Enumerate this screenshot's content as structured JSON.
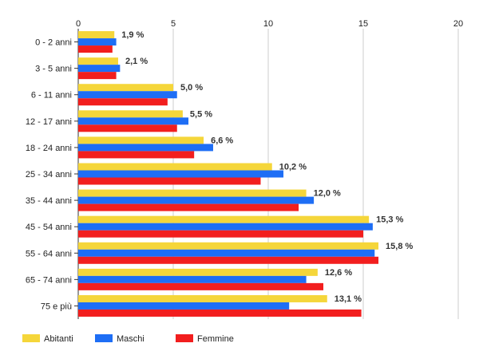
{
  "chart_data": {
    "type": "bar",
    "orientation": "horizontal",
    "categories": [
      "0 - 2 anni",
      "3 - 5 anni",
      "6 - 11 anni",
      "12 - 17 anni",
      "18 - 24 anni",
      "25 - 34 anni",
      "35 - 44 anni",
      "45 - 54 anni",
      "55 - 64 anni",
      "65 - 74 anni",
      "75 e più"
    ],
    "series": [
      {
        "name": "Abitanti",
        "color": "#f5d63a",
        "values": [
          1.9,
          2.1,
          5.0,
          5.5,
          6.6,
          10.2,
          12.0,
          15.3,
          15.8,
          12.6,
          13.1
        ]
      },
      {
        "name": "Maschi",
        "color": "#1e6ef5",
        "values": [
          2.0,
          2.2,
          5.2,
          5.8,
          7.1,
          10.8,
          12.4,
          15.5,
          15.6,
          12.0,
          11.1
        ]
      },
      {
        "name": "Femmine",
        "color": "#f21e1e",
        "values": [
          1.8,
          2.0,
          4.7,
          5.2,
          6.1,
          9.6,
          11.6,
          15.0,
          15.8,
          12.9,
          14.9
        ]
      }
    ],
    "data_labels": [
      "1,9 %",
      "2,1 %",
      "5,0 %",
      "5,5 %",
      "6,6 %",
      "10,2 %",
      "12,0 %",
      "15,3 %",
      "15,8 %",
      "12,6 %",
      "13,1 %"
    ],
    "x_ticks": [
      "0",
      "5",
      "10",
      "15",
      "20"
    ],
    "xlim": [
      0,
      20
    ],
    "grid": true,
    "legend_position": "bottom-left",
    "title": "",
    "xlabel": "",
    "ylabel": ""
  }
}
